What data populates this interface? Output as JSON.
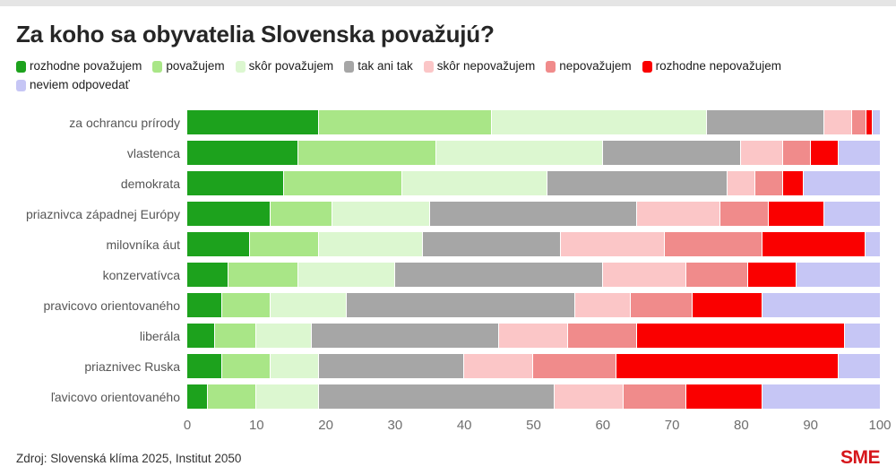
{
  "header": {
    "title": "Za koho sa obyvatelia Slovenska považujú?"
  },
  "footer": {
    "source": "Zdroj: Slovenská klíma 2025, Institut 2050",
    "logo": "SME",
    "logo_color": "#d6161b"
  },
  "colors": {
    "background": "#ffffff",
    "top_strip": "#e5e5e5",
    "title_text": "#262626",
    "row_label_text": "#565656",
    "axis_text": "#6e6e6e"
  },
  "chart_data": {
    "type": "bar",
    "stacked": true,
    "orientation": "horizontal",
    "title": "Za koho sa obyvatelia Slovenska považujú?",
    "legend_position": "top",
    "grid": false,
    "xlim": [
      0,
      100
    ],
    "x_ticks": [
      0,
      10,
      20,
      30,
      40,
      50,
      60,
      70,
      80,
      90,
      100
    ],
    "categories": [
      "za ochrancu prírody",
      "vlastenca",
      "demokrata",
      "priaznivca západnej Európy",
      "milovníka áut",
      "konzervatívca",
      "pravicovo orientovaného",
      "liberála",
      "priaznivec Ruska",
      "ľavicovo orientovaného"
    ],
    "series": [
      {
        "name": "rozhodne považujem",
        "color": "#1da21d",
        "values": [
          19,
          16,
          14,
          12,
          9,
          6,
          5,
          4,
          5,
          3
        ]
      },
      {
        "name": "považujem",
        "color": "#a9e687",
        "values": [
          25,
          20,
          17,
          9,
          10,
          10,
          7,
          6,
          7,
          7
        ]
      },
      {
        "name": "skôr považujem",
        "color": "#dcf7d0",
        "values": [
          31,
          24,
          21,
          14,
          15,
          14,
          11,
          8,
          7,
          9
        ]
      },
      {
        "name": "tak ani tak",
        "color": "#a6a6a6",
        "values": [
          17,
          20,
          26,
          30,
          20,
          30,
          33,
          27,
          21,
          34
        ]
      },
      {
        "name": "skôr nepovažujem",
        "color": "#fbc6c7",
        "values": [
          4,
          6,
          4,
          12,
          15,
          12,
          8,
          10,
          10,
          10
        ]
      },
      {
        "name": "nepovažujem",
        "color": "#f08b8b",
        "values": [
          2,
          4,
          4,
          7,
          14,
          9,
          9,
          10,
          12,
          9
        ]
      },
      {
        "name": "rozhodne nepovažujem",
        "color": "#fa0000",
        "values": [
          1,
          4,
          3,
          8,
          15,
          7,
          10,
          30,
          32,
          11
        ]
      },
      {
        "name": "neviem odpovedať",
        "color": "#c6c6f5",
        "values": [
          1,
          6,
          11,
          8,
          2,
          12,
          17,
          5,
          6,
          17
        ]
      }
    ]
  }
}
